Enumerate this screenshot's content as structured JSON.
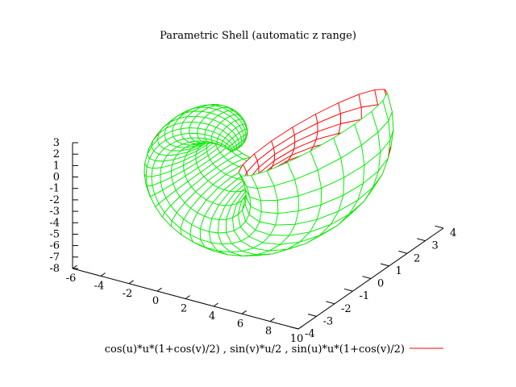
{
  "chart_data": {
    "type": "surface3d",
    "title": "Parametric Shell (automatic z range)",
    "legend": {
      "label": "cos(u)*u*(1+cos(v)/2) , sin(v)*u/2 , sin(u)*u*(1+cos(v)/2)",
      "placement": "bottom-center"
    },
    "parametric": {
      "x": "cos(u)*u*(1+cos(v)/2)",
      "y": "sin(v)*u/2",
      "z": "sin(u)*u*(1+cos(v)/2)"
    },
    "axes": {
      "x": {
        "ticks": [
          -6,
          -4,
          -2,
          0,
          2,
          4,
          6,
          8,
          10
        ],
        "range": [
          -6,
          10
        ]
      },
      "y": {
        "ticks": [
          -4,
          -3,
          -2,
          -1,
          0,
          1,
          2,
          3,
          4
        ],
        "range": [
          -4,
          4
        ]
      },
      "z": {
        "ticks": [
          3,
          2,
          1,
          0,
          -1,
          -2,
          -3,
          -4,
          -5,
          -6,
          -7,
          -8
        ],
        "range": [
          -8,
          3
        ]
      }
    },
    "colors": {
      "front_surface": "#00ee00",
      "back_surface": "#ff0000",
      "axes": "#000000"
    }
  }
}
